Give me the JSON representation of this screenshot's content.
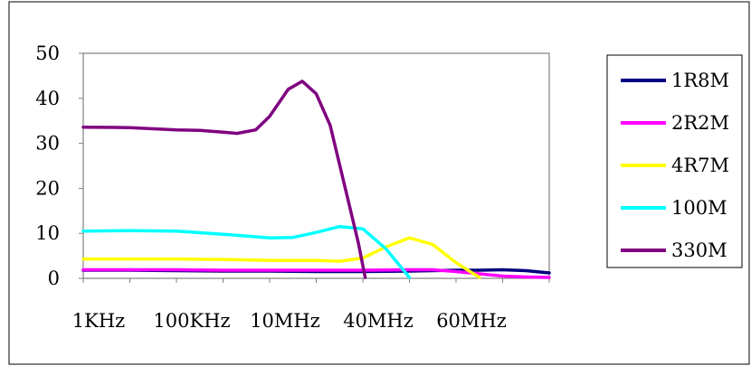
{
  "chart_data": {
    "type": "line",
    "title": "",
    "xlabel": "",
    "ylabel": "",
    "x_tick_labels": [
      "1KHz",
      "100KHz",
      "10MHz",
      "40MHz",
      "60MHz"
    ],
    "ylim": [
      0,
      50
    ],
    "y_ticks": [
      0,
      10,
      20,
      30,
      40,
      50
    ],
    "grid": false,
    "legend_position": "right",
    "series": [
      {
        "name": "1R8M",
        "color": "#000080",
        "points": [
          [
            0,
            1.8
          ],
          [
            0.5,
            1.8
          ],
          [
            1,
            1.8
          ],
          [
            2,
            1.7
          ],
          [
            3,
            1.6
          ],
          [
            4,
            1.6
          ],
          [
            5,
            1.5
          ],
          [
            6,
            1.5
          ],
          [
            7,
            1.6
          ],
          [
            7.5,
            1.7
          ],
          [
            8,
            1.8
          ],
          [
            8.5,
            1.8
          ],
          [
            9,
            1.9
          ],
          [
            9.5,
            1.7
          ],
          [
            10,
            1.2
          ]
        ]
      },
      {
        "name": "2R2M",
        "color": "#FF00FF",
        "points": [
          [
            0,
            1.9
          ],
          [
            1,
            1.9
          ],
          [
            2,
            1.9
          ],
          [
            3,
            1.8
          ],
          [
            4,
            1.8
          ],
          [
            5,
            1.8
          ],
          [
            6,
            1.8
          ],
          [
            7,
            1.9
          ],
          [
            7.5,
            1.9
          ],
          [
            8,
            1.5
          ],
          [
            8.5,
            1.0
          ],
          [
            9,
            0.5
          ],
          [
            9.5,
            0.3
          ],
          [
            10,
            0.2
          ]
        ]
      },
      {
        "name": "4R7M",
        "color": "#FFFF00",
        "points": [
          [
            0,
            4.3
          ],
          [
            1,
            4.3
          ],
          [
            2,
            4.3
          ],
          [
            3,
            4.2
          ],
          [
            4,
            4.0
          ],
          [
            5,
            4.0
          ],
          [
            5.5,
            3.8
          ],
          [
            6,
            4.5
          ],
          [
            6.5,
            7.0
          ],
          [
            7,
            9.0
          ],
          [
            7.5,
            7.5
          ],
          [
            8,
            3.5
          ],
          [
            8.5,
            0.2
          ]
        ]
      },
      {
        "name": "100M",
        "color": "#00FFFF",
        "points": [
          [
            0,
            10.5
          ],
          [
            1,
            10.6
          ],
          [
            2,
            10.5
          ],
          [
            3,
            9.8
          ],
          [
            4,
            9.0
          ],
          [
            4.5,
            9.1
          ],
          [
            5,
            10.2
          ],
          [
            5.5,
            11.5
          ],
          [
            6,
            11.0
          ],
          [
            6.5,
            6.5
          ],
          [
            7,
            0.2
          ]
        ]
      },
      {
        "name": "330M",
        "color": "#800080",
        "points": [
          [
            0,
            33.6
          ],
          [
            1,
            33.5
          ],
          [
            2,
            33.0
          ],
          [
            2.5,
            32.9
          ],
          [
            3,
            32.5
          ],
          [
            3.3,
            32.2
          ],
          [
            3.7,
            33.0
          ],
          [
            4,
            36.0
          ],
          [
            4.4,
            42.0
          ],
          [
            4.7,
            43.8
          ],
          [
            5,
            41.0
          ],
          [
            5.3,
            34.0
          ],
          [
            5.6,
            21.0
          ],
          [
            5.9,
            8.0
          ],
          [
            6.05,
            0.2
          ]
        ]
      }
    ]
  }
}
